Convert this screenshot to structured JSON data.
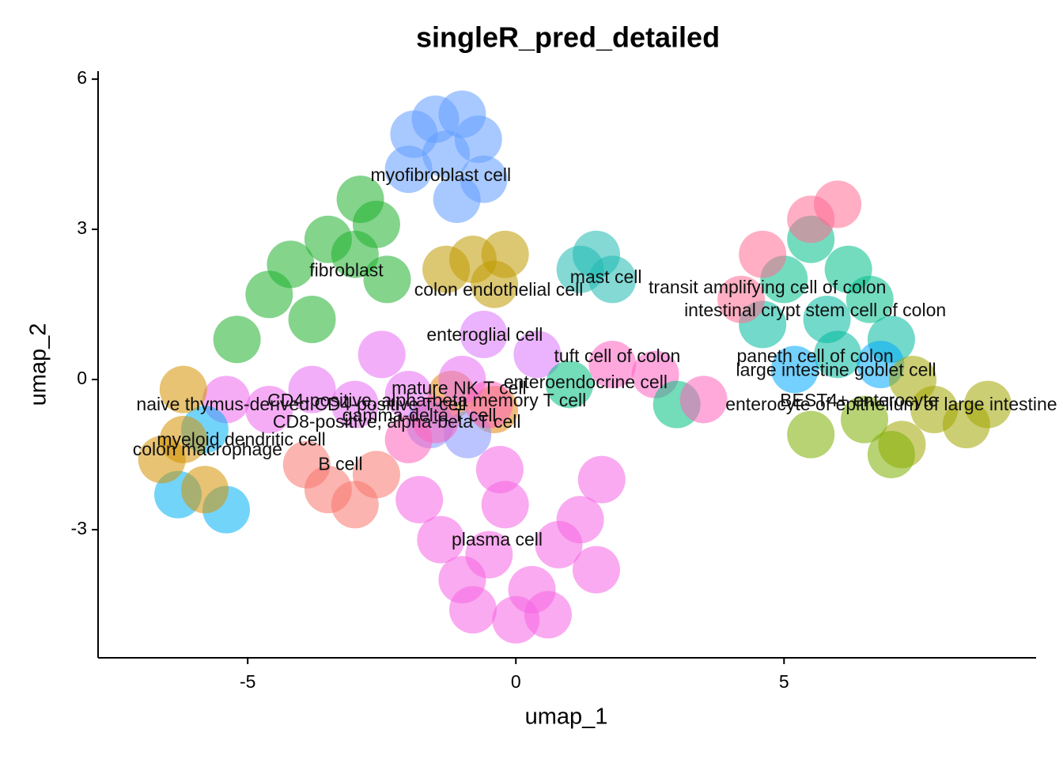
{
  "chart_data": {
    "type": "scatter",
    "title": "singleR_pred_detailed",
    "x_label": "umap_1",
    "y_label": "umap_2",
    "xlim": [
      -7.79,
      9.7
    ],
    "ylim": [
      -5.56,
      6.16
    ],
    "xticks": [
      -5,
      0,
      5
    ],
    "yticks": [
      -3,
      0,
      3,
      6
    ],
    "grid": false,
    "series": [
      {
        "name": "plasma cell",
        "color": "#F564E3",
        "label": [
          -0.35,
          -3.22
        ],
        "x": [
          -0.5,
          0.3,
          -1,
          0.8,
          -0.2,
          1.2,
          -1.4,
          0,
          -0.8,
          0.6,
          1.5,
          -0.3,
          -1.8,
          1.6
        ],
        "y": [
          -3.5,
          -4.2,
          -4,
          -3.3,
          -2.5,
          -2.8,
          -3.2,
          -4.8,
          -4.6,
          -4.7,
          -3.8,
          -1.8,
          -2.4,
          -2
        ]
      },
      {
        "name": "myofibroblast cell",
        "color": "#619CFF",
        "label": [
          -1.4,
          4.06
        ],
        "x": [
          -1.5,
          -1,
          -1.9,
          -0.7,
          -1.3,
          -2,
          -0.6,
          -1.1
        ],
        "y": [
          5.2,
          5.3,
          4.9,
          4.8,
          4.5,
          4.2,
          4.0,
          3.6
        ]
      },
      {
        "name": "fibroblast",
        "color": "#1FB02E",
        "label": [
          -3.16,
          2.16
        ],
        "x": [
          -3.5,
          -4.2,
          -3,
          -2.6,
          -4.6,
          -3.8,
          -2.4,
          -2.9,
          -5.2
        ],
        "y": [
          2.8,
          2.3,
          2.5,
          3.1,
          1.7,
          1.2,
          2,
          3.6,
          0.8
        ]
      },
      {
        "name": "colon endothelial cell",
        "color": "#C09B00",
        "label": [
          -0.32,
          1.77
        ],
        "x": [
          -0.8,
          -0.2,
          -1.3,
          -0.4
        ],
        "y": [
          2.4,
          2.5,
          2.2,
          1.9
        ]
      },
      {
        "name": "mast cell",
        "color": "#1FB9B3",
        "label": [
          1.68,
          2.02
        ],
        "x": [
          1.5,
          1.2,
          1.8
        ],
        "y": [
          2.5,
          2.2,
          2.0
        ]
      },
      {
        "name": "transit amplifying cell of colon",
        "color": "#00C08B",
        "label": [
          4.69,
          1.82
        ],
        "x": [
          5.5,
          6.2,
          5,
          6.6
        ],
        "y": [
          2.8,
          2.2,
          2,
          1.6
        ]
      },
      {
        "name": "intestinal crypt stem cell of colon",
        "color": "#00BA9E",
        "label": [
          5.58,
          1.36
        ],
        "x": [
          5.8,
          4.6,
          7,
          6
        ],
        "y": [
          1.2,
          1.1,
          0.8,
          0.5
        ]
      },
      {
        "name": "paneth cell of colon",
        "color": "#00A9FF",
        "label": [
          5.58,
          0.44
        ],
        "x": [
          5.2,
          6.8
        ],
        "y": [
          0.2,
          0.3
        ]
      },
      {
        "name": "large intestine goblet cell",
        "color": "#FF6C91",
        "label": [
          5.97,
          0.17
        ],
        "x": [
          5.5,
          4.6,
          6,
          4.2
        ],
        "y": [
          3.2,
          2.5,
          3.5,
          1.6
        ]
      },
      {
        "name": "enterocyte of epithelium of large intestine",
        "color": "#A3A500",
        "label": [
          7.0,
          -0.52
        ],
        "x": [
          7.8,
          8.4,
          7.2,
          8.8,
          7.4
        ],
        "y": [
          -0.6,
          -0.9,
          -1.3,
          -0.5,
          0
        ]
      },
      {
        "name": "BEST4+ enterocyte",
        "color": "#7CAE00",
        "label": [
          6.4,
          -0.44
        ],
        "x": [
          6.5,
          7,
          5.5
        ],
        "y": [
          -0.8,
          -1.5,
          -1.1
        ]
      },
      {
        "name": "enteroglial cell",
        "color": "#DB72FB",
        "label": [
          -0.58,
          0.87
        ],
        "x": [
          -0.6,
          0.4
        ],
        "y": [
          0.9,
          0.5
        ]
      },
      {
        "name": "tuft cell of colon",
        "color": "#FF61C3",
        "label": [
          1.89,
          0.44
        ],
        "x": [
          1.8,
          2.6
        ],
        "y": [
          0.3,
          0.1
        ]
      },
      {
        "name": "enteroendocrine cell",
        "color": "#00BF7D",
        "label": [
          1.3,
          -0.08
        ],
        "x": [
          1.0,
          3.0
        ],
        "y": [
          -0.1,
          -0.5
        ]
      },
      {
        "name": "mature NK T cell",
        "color": "#E68613",
        "label": [
          -1.06,
          -0.2
        ],
        "x": [
          -1.2,
          -0.4
        ],
        "y": [
          -0.3,
          -0.6
        ]
      },
      {
        "name": "CD4-positive, alpha-beta memory T cell",
        "color": "#E76BF3",
        "label": [
          -1.66,
          -0.44
        ],
        "x": [
          -3,
          -2,
          -1,
          -2.5,
          -3.8
        ],
        "y": [
          -0.5,
          -0.3,
          0,
          0.5,
          -0.2
        ]
      },
      {
        "name": "gamma-delta T cell",
        "color": "#8494FF",
        "label": [
          -1.8,
          -0.74
        ],
        "x": [
          -1.6,
          -0.9
        ],
        "y": [
          -0.9,
          -1.1
        ]
      },
      {
        "name": "CD8-positive, alpha-beta T cell",
        "color": "#FF62BC",
        "label": [
          -2.22,
          -0.87
        ],
        "x": [
          -1.5,
          -0.5,
          -2,
          3.5
        ],
        "y": [
          -0.8,
          -0.5,
          -1.2,
          -0.4
        ]
      },
      {
        "name": "naive thymus-derived CD4-positive T cell",
        "color": "#ED68ED",
        "label": [
          -4.0,
          -0.52
        ],
        "x": [
          -4.6,
          -5.4
        ],
        "y": [
          -0.6,
          -0.4
        ]
      },
      {
        "name": "myeloid dendritic cell",
        "color": "#00B0F6",
        "label": [
          -5.12,
          -1.22
        ],
        "x": [
          -5.8,
          -6.3,
          -5.4
        ],
        "y": [
          -1.0,
          -2.3,
          -2.6
        ]
      },
      {
        "name": "colon macrophage",
        "color": "#D39200",
        "label": [
          -5.75,
          -1.42
        ],
        "x": [
          -6.2,
          -6.6,
          -5.8,
          -6.2
        ],
        "y": [
          -1.2,
          -1.6,
          -2.2,
          -0.2
        ]
      },
      {
        "name": "B cell",
        "color": "#F8766D",
        "label": [
          -3.27,
          -1.71
        ],
        "x": [
          -3.5,
          -3,
          -3.9,
          -2.6
        ],
        "y": [
          -2.2,
          -2.5,
          -1.7,
          -1.9
        ]
      }
    ]
  }
}
